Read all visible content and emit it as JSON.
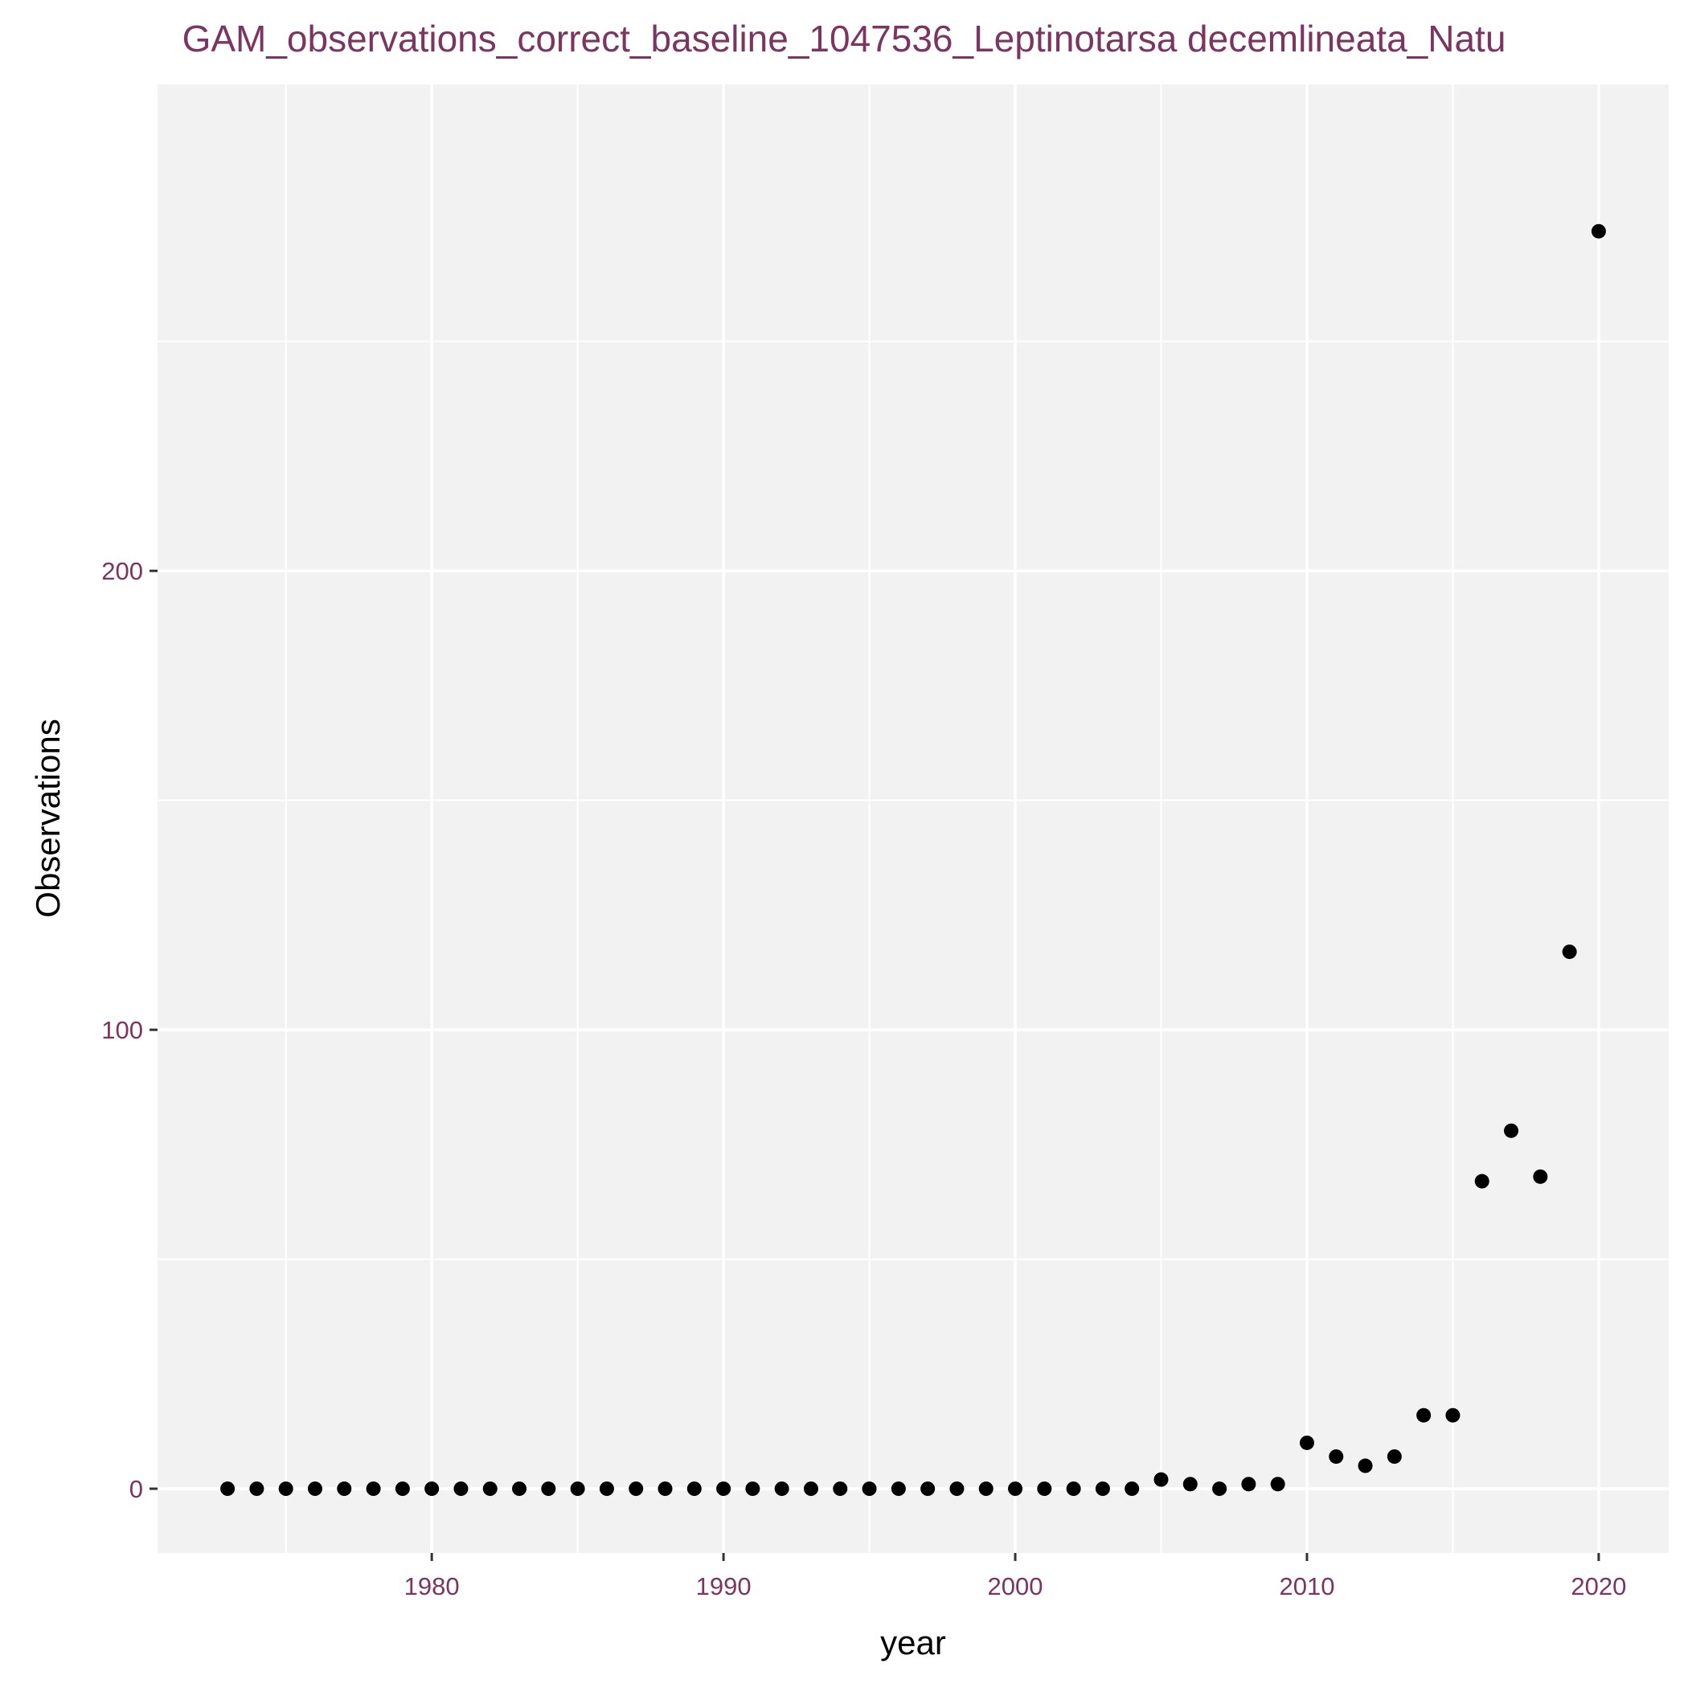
{
  "chart_data": {
    "type": "scatter",
    "title": "GAM_observations_correct_baseline_1047536_Leptinotarsa decemlineata_Natu",
    "xlabel": "year",
    "ylabel": "Observations",
    "xlim": [
      1970.6,
      2022.4
    ],
    "ylim": [
      -14,
      306
    ],
    "x_ticks": [
      1980,
      1990,
      2000,
      2010,
      2020
    ],
    "x_minor_ticks": [
      1975,
      1985,
      1995,
      2005,
      2015
    ],
    "y_ticks": [
      0,
      100,
      200
    ],
    "y_minor_ticks": [
      50,
      150,
      250
    ],
    "grid": true,
    "legend": "none",
    "colors": {
      "panel_background": "#f2f2f2",
      "grid": "#ffffff",
      "points": "#000000",
      "labels": "#7b3560"
    },
    "series": [
      {
        "x": [
          1973,
          1974,
          1975,
          1976,
          1977,
          1978,
          1979,
          1980,
          1981,
          1982,
          1983,
          1984,
          1985,
          1986,
          1987,
          1988,
          1989,
          1990,
          1991,
          1992,
          1993,
          1994,
          1995,
          1996,
          1997,
          1998,
          1999,
          2000,
          2001,
          2002,
          2003,
          2004,
          2005,
          2006,
          2007,
          2008,
          2009,
          2010,
          2011,
          2012,
          2013,
          2014,
          2015,
          2016,
          2017,
          2018,
          2019,
          2020
        ],
        "y": [
          0,
          0,
          0,
          0,
          0,
          0,
          0,
          0,
          0,
          0,
          0,
          0,
          0,
          0,
          0,
          0,
          0,
          0,
          0,
          0,
          0,
          0,
          0,
          0,
          0,
          0,
          0,
          0,
          0,
          0,
          0,
          0,
          2,
          1,
          0,
          1,
          1,
          10,
          7,
          5,
          7,
          16,
          16,
          67,
          78,
          68,
          117,
          274
        ]
      }
    ]
  }
}
